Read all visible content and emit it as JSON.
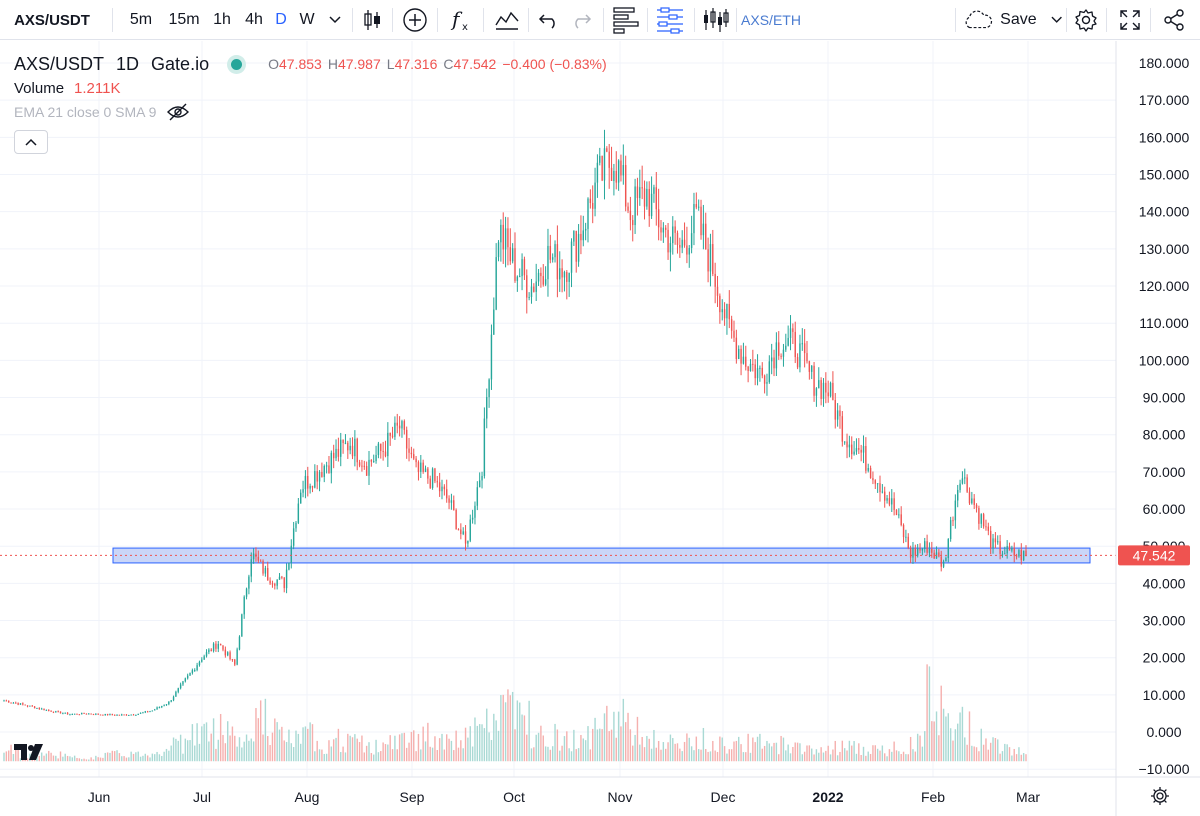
{
  "toolbar": {
    "symbol": "AXS/USDT",
    "intervals": [
      "5m",
      "15m",
      "1h",
      "4h",
      "D",
      "W"
    ],
    "active_interval": "D",
    "compare_symbol": "AXS/ETH",
    "save_label": "Save"
  },
  "legend": {
    "title": "AXS/USDT",
    "interval": "1D",
    "exchange": "Gate.io",
    "open_label": "O",
    "open": "47.853",
    "high_label": "H",
    "high": "47.987",
    "low_label": "L",
    "low": "47.316",
    "close_label": "C",
    "close": "47.542",
    "change": "−0.400 (−0.83%)",
    "volume_label": "Volume",
    "volume": "1.211K",
    "indicator": "EMA 21 close 0 SMA 9"
  },
  "colors": {
    "up": "#26a69a",
    "down": "#ef5350",
    "zone_fill": "#b3c4f5",
    "zone_stroke": "#2962ff",
    "price_tag": "#ef5350"
  },
  "chart_data": {
    "type": "candlestick",
    "y_ticks": [
      "180.000",
      "170.000",
      "160.000",
      "150.000",
      "140.000",
      "130.000",
      "120.000",
      "110.000",
      "100.000",
      "90.000",
      "80.000",
      "70.000",
      "60.000",
      "50.000",
      "40.000",
      "30.000",
      "20.000",
      "10.000",
      "0.000",
      "−10.000"
    ],
    "ylim": [
      -10,
      180
    ],
    "x_ticks": [
      "Jun",
      "Jul",
      "Aug",
      "Sep",
      "Oct",
      "Nov",
      "Dec",
      "2022",
      "Feb",
      "Mar"
    ],
    "last_price": "47.542",
    "support_zone": {
      "low": 45.5,
      "high": 49.5,
      "from": "Jun",
      "to": "Mar"
    },
    "weekly_closes": [
      8.5,
      7.5,
      6.5,
      5.5,
      4.8,
      5.0,
      4.7,
      4.6,
      4.8,
      5.8,
      8,
      14,
      20,
      24,
      18,
      48,
      42,
      40,
      66,
      70,
      74,
      78,
      72,
      76,
      82,
      70,
      68,
      62,
      50,
      72,
      135,
      125,
      120,
      128,
      125,
      135,
      148,
      155,
      140,
      145,
      135,
      130,
      138,
      125,
      108,
      100,
      96,
      105,
      104,
      95,
      92,
      80,
      75,
      68,
      60,
      48,
      50,
      45,
      70,
      60,
      50,
      48,
      47.5
    ],
    "weekly_volumes": [
      3,
      2,
      2,
      2,
      1,
      1,
      2,
      2,
      2,
      3,
      5,
      8,
      8,
      10,
      6,
      12,
      8,
      6,
      7,
      5,
      6,
      5,
      4,
      5,
      6,
      7,
      5,
      6,
      8,
      10,
      16,
      12,
      9,
      7,
      6,
      8,
      10,
      14,
      8,
      6,
      5,
      5,
      6,
      5,
      6,
      5,
      4,
      5,
      4,
      3,
      4,
      4,
      3,
      3,
      4,
      6,
      18,
      12,
      10,
      6,
      5,
      4,
      3
    ]
  }
}
